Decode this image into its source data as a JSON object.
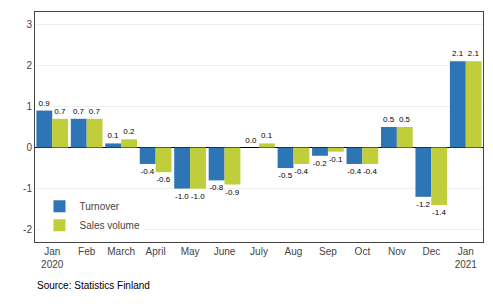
{
  "chart_data": {
    "type": "bar",
    "categories": [
      "Jan\n2020",
      "Feb",
      "March",
      "April",
      "May",
      "June",
      "July",
      "Aug",
      "Sep",
      "Oct",
      "Nov",
      "Dec",
      "Jan\n2021"
    ],
    "series": [
      {
        "name": "Turnover",
        "color": "#2E75B6",
        "values": [
          0.9,
          0.7,
          0.1,
          -0.4,
          -1.0,
          -0.8,
          0.0,
          -0.5,
          -0.2,
          -0.4,
          0.5,
          -1.2,
          2.1
        ],
        "value_labels": [
          "0.9",
          "0.7",
          "0.1",
          "-0.4",
          "-1.0",
          "-0.8",
          "0.0",
          "-0.5",
          "-0.2",
          "-0.4",
          "0.5",
          "-1.2",
          "2.1"
        ]
      },
      {
        "name": "Sales volume",
        "color": "#BFCE3A",
        "values": [
          0.7,
          0.7,
          0.2,
          -0.6,
          -1.0,
          -0.9,
          0.1,
          -0.4,
          -0.1,
          -0.4,
          0.5,
          -1.4,
          2.1
        ],
        "value_labels": [
          "0.7",
          "0.7",
          "0.2",
          "-0.6",
          "-1.0",
          "-0.9",
          "0.1",
          "-0.4",
          "-0.1",
          "-0.4",
          "0.5",
          "-1.4",
          "2.1"
        ]
      }
    ],
    "ylim": [
      -2.3,
      3.3
    ],
    "yticks": [
      -2,
      -1,
      0,
      1,
      2,
      3
    ],
    "grid": true,
    "legend": "lower left",
    "data_labels": true,
    "annotations": [
      "Source: Statistics Finland"
    ]
  }
}
